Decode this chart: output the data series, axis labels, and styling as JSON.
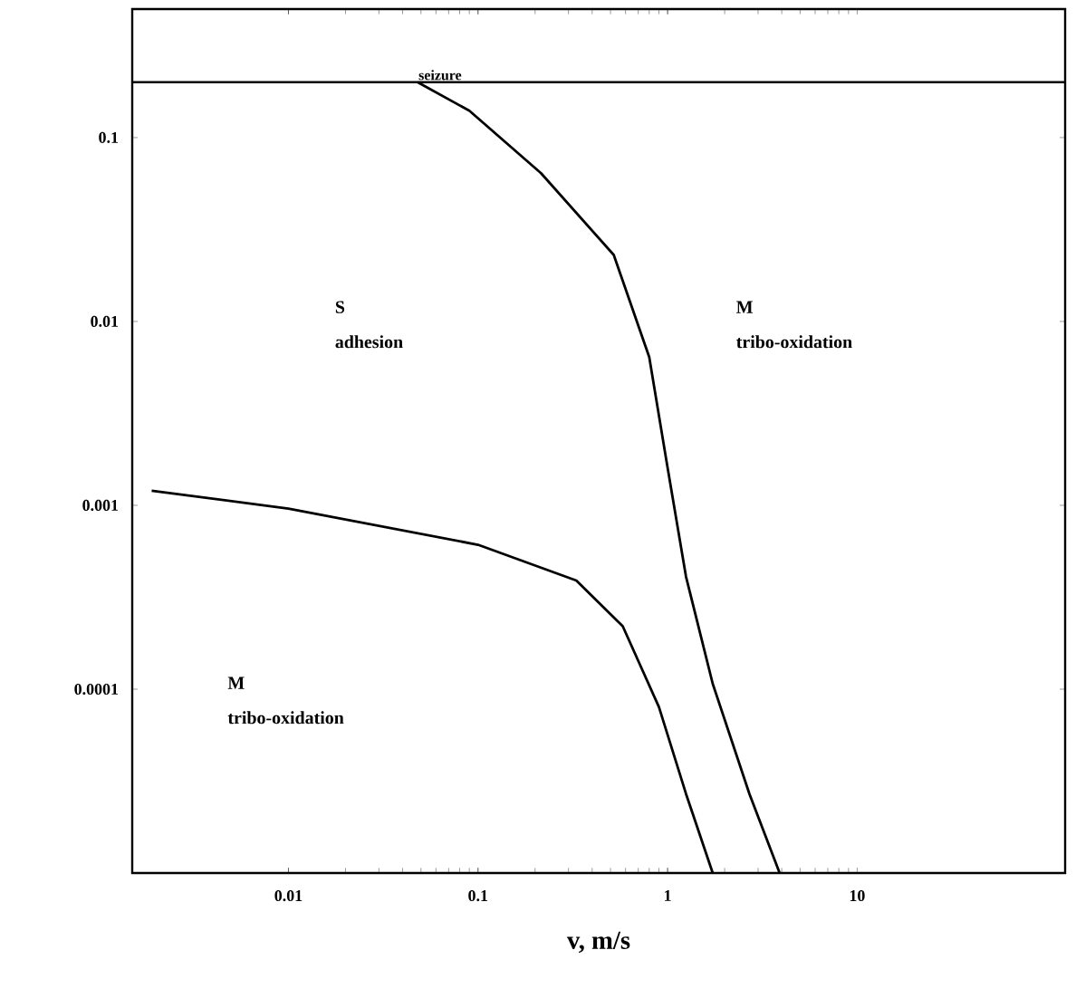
{
  "chart_data": {
    "type": "line",
    "xlabel": "v, m/s",
    "log": "xy",
    "line_style": "solid",
    "xlim": [
      0.0015,
      125
    ],
    "ylim": [
      1e-05,
      0.5
    ],
    "xticks": [
      0.01,
      0.1,
      1,
      10
    ],
    "yticks": [
      0.1,
      0.01,
      0.001,
      0.0001
    ],
    "series": [
      {
        "color": "#000000",
        "x": [
          0.048,
          0.09,
          0.215,
          0.52,
          0.8,
          1,
          1.25,
          1.73,
          2.7,
          3.9
        ],
        "values": [
          0.2,
          0.14,
          0.064,
          0.023,
          0.0064,
          0.0016,
          0.00041,
          0.000107,
          2.7e-05,
          1e-05
        ]
      },
      {
        "color": "#000000",
        "x": [
          0.0019,
          0.01,
          0.1,
          0.33,
          0.58,
          0.9,
          1.25,
          1.73
        ],
        "values": [
          0.0012,
          0.00096,
          0.00061,
          0.00039,
          0.00022,
          8e-05,
          2.7e-05,
          1e-05
        ]
      }
    ],
    "ref_lines": [
      {
        "axis": "y",
        "value": 0.2,
        "label": "seizure",
        "color": "#000000"
      }
    ],
    "annotations": [
      "**S**",
      "adhesion",
      "**M**",
      "tribo-oxidation",
      "**M**",
      "tribo-oxidation"
    ]
  }
}
